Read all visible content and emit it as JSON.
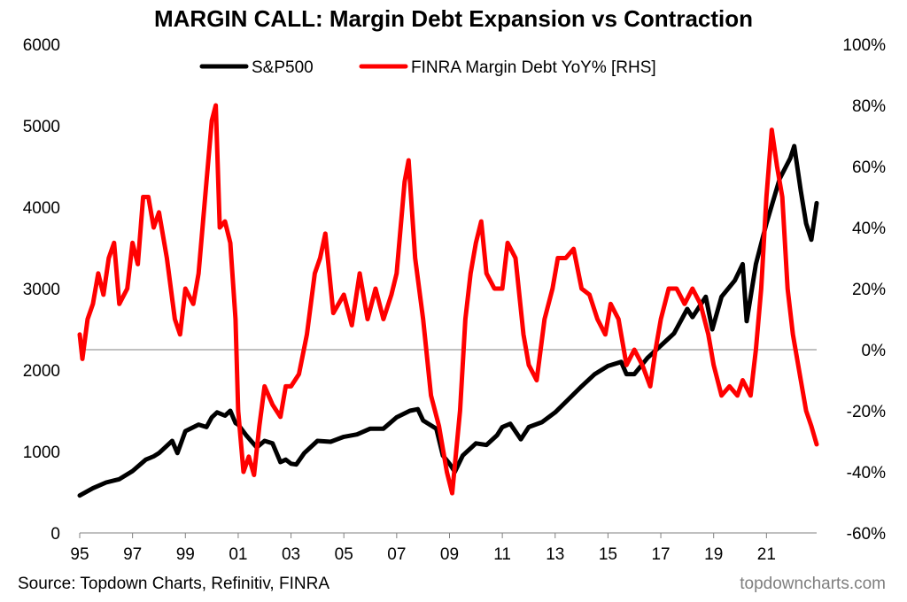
{
  "chart_data": {
    "type": "line",
    "title": "MARGIN CALL: Margin Debt Expansion vs Contraction",
    "source": "Source: Topdown Charts, Refinitiv, FINRA",
    "watermark": "topdowncharts.com",
    "x_ticks": [
      "95",
      "97",
      "99",
      "01",
      "03",
      "05",
      "07",
      "09",
      "11",
      "13",
      "15",
      "17",
      "19",
      "21"
    ],
    "x_tick_years": [
      1995,
      1997,
      1999,
      2001,
      2003,
      2005,
      2007,
      2009,
      2011,
      2013,
      2015,
      2017,
      2019,
      2021
    ],
    "xlim": [
      1995,
      2022.9
    ],
    "left_axis": {
      "ticks": [
        "0",
        "1000",
        "2000",
        "3000",
        "4000",
        "5000",
        "6000"
      ],
      "ylim": [
        0,
        6000
      ]
    },
    "right_axis": {
      "ticks": [
        "-60%",
        "-40%",
        "-20%",
        "0%",
        "20%",
        "40%",
        "60%",
        "80%",
        "100%"
      ],
      "ylim": [
        -60,
        100
      ],
      "unit": "%"
    },
    "grid": false,
    "legend_position": "top-center",
    "zero_line_on": "right",
    "series": [
      {
        "name": "S&P500",
        "axis": "left",
        "color": "#000000",
        "points": [
          [
            1995.0,
            460
          ],
          [
            1995.5,
            550
          ],
          [
            1996.0,
            620
          ],
          [
            1996.5,
            660
          ],
          [
            1997.0,
            760
          ],
          [
            1997.5,
            900
          ],
          [
            1997.8,
            940
          ],
          [
            1998.0,
            980
          ],
          [
            1998.5,
            1130
          ],
          [
            1998.7,
            980
          ],
          [
            1999.0,
            1250
          ],
          [
            1999.5,
            1330
          ],
          [
            1999.8,
            1300
          ],
          [
            2000.0,
            1420
          ],
          [
            2000.2,
            1480
          ],
          [
            2000.5,
            1440
          ],
          [
            2000.7,
            1500
          ],
          [
            2000.9,
            1350
          ],
          [
            2001.0,
            1330
          ],
          [
            2001.3,
            1200
          ],
          [
            2001.7,
            1050
          ],
          [
            2002.0,
            1130
          ],
          [
            2002.3,
            1100
          ],
          [
            2002.6,
            870
          ],
          [
            2002.8,
            900
          ],
          [
            2003.0,
            850
          ],
          [
            2003.2,
            840
          ],
          [
            2003.5,
            980
          ],
          [
            2004.0,
            1130
          ],
          [
            2004.5,
            1120
          ],
          [
            2005.0,
            1180
          ],
          [
            2005.5,
            1210
          ],
          [
            2006.0,
            1280
          ],
          [
            2006.5,
            1280
          ],
          [
            2007.0,
            1420
          ],
          [
            2007.5,
            1500
          ],
          [
            2007.8,
            1520
          ],
          [
            2008.0,
            1380
          ],
          [
            2008.5,
            1280
          ],
          [
            2008.75,
            950
          ],
          [
            2009.0,
            850
          ],
          [
            2009.2,
            750
          ],
          [
            2009.5,
            950
          ],
          [
            2010.0,
            1100
          ],
          [
            2010.4,
            1080
          ],
          [
            2010.8,
            1200
          ],
          [
            2011.0,
            1300
          ],
          [
            2011.3,
            1340
          ],
          [
            2011.7,
            1150
          ],
          [
            2012.0,
            1300
          ],
          [
            2012.5,
            1360
          ],
          [
            2013.0,
            1480
          ],
          [
            2013.5,
            1640
          ],
          [
            2014.0,
            1800
          ],
          [
            2014.5,
            1950
          ],
          [
            2015.0,
            2050
          ],
          [
            2015.5,
            2100
          ],
          [
            2015.7,
            1950
          ],
          [
            2016.0,
            1950
          ],
          [
            2016.5,
            2150
          ],
          [
            2017.0,
            2300
          ],
          [
            2017.5,
            2450
          ],
          [
            2018.0,
            2750
          ],
          [
            2018.2,
            2650
          ],
          [
            2018.7,
            2900
          ],
          [
            2018.95,
            2500
          ],
          [
            2019.3,
            2900
          ],
          [
            2019.8,
            3100
          ],
          [
            2020.1,
            3300
          ],
          [
            2020.25,
            2600
          ],
          [
            2020.6,
            3300
          ],
          [
            2021.0,
            3800
          ],
          [
            2021.5,
            4350
          ],
          [
            2021.9,
            4600
          ],
          [
            2022.05,
            4750
          ],
          [
            2022.3,
            4200
          ],
          [
            2022.5,
            3800
          ],
          [
            2022.7,
            3600
          ],
          [
            2022.9,
            4050
          ]
        ]
      },
      {
        "name": "FINRA Margin Debt YoY% [RHS]",
        "axis": "right",
        "color": "#ff0000",
        "points": [
          [
            1995.0,
            5
          ],
          [
            1995.1,
            -3
          ],
          [
            1995.3,
            10
          ],
          [
            1995.5,
            15
          ],
          [
            1995.7,
            25
          ],
          [
            1995.9,
            18
          ],
          [
            1996.1,
            30
          ],
          [
            1996.3,
            35
          ],
          [
            1996.5,
            15
          ],
          [
            1996.8,
            20
          ],
          [
            1997.0,
            35
          ],
          [
            1997.2,
            28
          ],
          [
            1997.4,
            50
          ],
          [
            1997.6,
            50
          ],
          [
            1997.8,
            40
          ],
          [
            1998.0,
            45
          ],
          [
            1998.3,
            30
          ],
          [
            1998.6,
            10
          ],
          [
            1998.8,
            5
          ],
          [
            1999.0,
            20
          ],
          [
            1999.3,
            15
          ],
          [
            1999.5,
            25
          ],
          [
            1999.8,
            55
          ],
          [
            2000.0,
            75
          ],
          [
            2000.15,
            80
          ],
          [
            2000.3,
            40
          ],
          [
            2000.5,
            42
          ],
          [
            2000.7,
            35
          ],
          [
            2000.9,
            10
          ],
          [
            2001.0,
            -20
          ],
          [
            2001.2,
            -40
          ],
          [
            2001.4,
            -35
          ],
          [
            2001.6,
            -41
          ],
          [
            2001.8,
            -25
          ],
          [
            2002.0,
            -12
          ],
          [
            2002.3,
            -18
          ],
          [
            2002.6,
            -22
          ],
          [
            2002.8,
            -12
          ],
          [
            2003.0,
            -12
          ],
          [
            2003.3,
            -8
          ],
          [
            2003.6,
            5
          ],
          [
            2003.9,
            25
          ],
          [
            2004.1,
            30
          ],
          [
            2004.3,
            38
          ],
          [
            2004.6,
            12
          ],
          [
            2005.0,
            18
          ],
          [
            2005.3,
            8
          ],
          [
            2005.6,
            25
          ],
          [
            2005.9,
            10
          ],
          [
            2006.2,
            20
          ],
          [
            2006.5,
            10
          ],
          [
            2006.8,
            18
          ],
          [
            2007.0,
            25
          ],
          [
            2007.3,
            55
          ],
          [
            2007.45,
            62
          ],
          [
            2007.7,
            30
          ],
          [
            2008.0,
            10
          ],
          [
            2008.3,
            -15
          ],
          [
            2008.6,
            -25
          ],
          [
            2008.9,
            -40
          ],
          [
            2009.1,
            -47
          ],
          [
            2009.4,
            -20
          ],
          [
            2009.6,
            10
          ],
          [
            2009.8,
            25
          ],
          [
            2010.0,
            35
          ],
          [
            2010.2,
            42
          ],
          [
            2010.4,
            25
          ],
          [
            2010.7,
            20
          ],
          [
            2011.0,
            20
          ],
          [
            2011.2,
            35
          ],
          [
            2011.5,
            30
          ],
          [
            2011.8,
            5
          ],
          [
            2012.0,
            -5
          ],
          [
            2012.3,
            -10
          ],
          [
            2012.6,
            10
          ],
          [
            2012.9,
            20
          ],
          [
            2013.1,
            30
          ],
          [
            2013.4,
            30
          ],
          [
            2013.7,
            33
          ],
          [
            2014.0,
            20
          ],
          [
            2014.3,
            18
          ],
          [
            2014.6,
            10
          ],
          [
            2014.9,
            5
          ],
          [
            2015.1,
            15
          ],
          [
            2015.4,
            10
          ],
          [
            2015.7,
            -5
          ],
          [
            2016.0,
            0
          ],
          [
            2016.3,
            -5
          ],
          [
            2016.6,
            -12
          ],
          [
            2016.8,
            0
          ],
          [
            2017.0,
            10
          ],
          [
            2017.3,
            20
          ],
          [
            2017.6,
            20
          ],
          [
            2017.9,
            15
          ],
          [
            2018.2,
            20
          ],
          [
            2018.5,
            15
          ],
          [
            2018.8,
            5
          ],
          [
            2019.0,
            -5
          ],
          [
            2019.3,
            -15
          ],
          [
            2019.6,
            -12
          ],
          [
            2019.9,
            -15
          ],
          [
            2020.1,
            -10
          ],
          [
            2020.4,
            -15
          ],
          [
            2020.6,
            0
          ],
          [
            2020.8,
            20
          ],
          [
            2021.0,
            50
          ],
          [
            2021.2,
            72
          ],
          [
            2021.4,
            60
          ],
          [
            2021.6,
            50
          ],
          [
            2021.8,
            20
          ],
          [
            2022.0,
            5
          ],
          [
            2022.3,
            -10
          ],
          [
            2022.5,
            -20
          ],
          [
            2022.7,
            -25
          ],
          [
            2022.9,
            -31
          ]
        ]
      }
    ]
  }
}
